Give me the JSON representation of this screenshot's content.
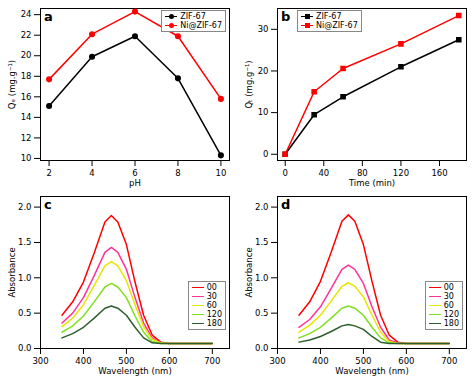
{
  "chart_data": [
    {
      "type": "line",
      "title": "a",
      "x_label": "pH",
      "y_label": "Qₑ (mg.g⁻¹)",
      "x": [
        2,
        4,
        6,
        8,
        10
      ],
      "series": [
        {
          "name": "ZIF-67",
          "color": "#000000",
          "values": [
            15.1,
            19.9,
            21.9,
            17.8,
            10.3
          ]
        },
        {
          "name": "Ni@ZIF-67",
          "color": "#ff0000",
          "values": [
            17.7,
            22.1,
            24.3,
            21.9,
            15.8
          ]
        }
      ],
      "xlim": [
        1.6,
        10.4
      ],
      "xticks": [
        2,
        4,
        6,
        8,
        10
      ],
      "ylim": [
        9.8,
        24.6
      ],
      "yticks": [
        10,
        12,
        14,
        16,
        18,
        20,
        22,
        24
      ],
      "marker": "circle",
      "grid": false,
      "legend": "upper right"
    },
    {
      "type": "line",
      "title": "b",
      "x_label": "Time (min)",
      "y_label": "Qₜ (mg.g⁻¹)",
      "x": [
        0,
        30,
        60,
        120,
        180
      ],
      "series": [
        {
          "name": "ZIF-67",
          "color": "#000000",
          "values": [
            0,
            9.5,
            13.8,
            21.0,
            27.5
          ]
        },
        {
          "name": "Ni@ZIF-67",
          "color": "#ff0000",
          "values": [
            0,
            15.0,
            20.6,
            26.5,
            33.3
          ]
        }
      ],
      "xlim": [
        -8,
        188
      ],
      "xticks": [
        0,
        40,
        80,
        120,
        160
      ],
      "ylim": [
        -1.5,
        35
      ],
      "yticks": [
        0,
        10,
        20,
        30
      ],
      "marker": "square",
      "grid": false,
      "legend": "upper left"
    },
    {
      "type": "line",
      "title": "c",
      "x_label": "Wavelength (nm)",
      "y_label": "Absorbance",
      "x": [
        350,
        375,
        400,
        425,
        450,
        465,
        480,
        500,
        520,
        540,
        560,
        580,
        600,
        650,
        700
      ],
      "series": [
        {
          "name": "00",
          "color": "#ff0000",
          "values": [
            0.47,
            0.66,
            0.94,
            1.35,
            1.79,
            1.88,
            1.79,
            1.47,
            0.94,
            0.47,
            0.19,
            0.09,
            0.07,
            0.07,
            0.07
          ]
        },
        {
          "name": "30",
          "color": "#ff3399",
          "values": [
            0.36,
            0.5,
            0.72,
            1.03,
            1.36,
            1.43,
            1.36,
            1.12,
            0.72,
            0.36,
            0.15,
            0.08,
            0.07,
            0.07,
            0.07
          ]
        },
        {
          "name": "60",
          "color": "#e6e600",
          "values": [
            0.31,
            0.43,
            0.62,
            0.89,
            1.17,
            1.23,
            1.17,
            0.96,
            0.62,
            0.31,
            0.13,
            0.08,
            0.07,
            0.07,
            0.07
          ]
        },
        {
          "name": "120",
          "color": "#80e020",
          "values": [
            0.23,
            0.32,
            0.46,
            0.66,
            0.87,
            0.92,
            0.87,
            0.72,
            0.46,
            0.23,
            0.1,
            0.07,
            0.07,
            0.07,
            0.07
          ]
        },
        {
          "name": "180",
          "color": "#2e5e2e",
          "values": [
            0.15,
            0.21,
            0.3,
            0.43,
            0.57,
            0.6,
            0.57,
            0.47,
            0.3,
            0.15,
            0.08,
            0.07,
            0.07,
            0.07,
            0.07
          ]
        }
      ],
      "xlim": [
        300,
        740
      ],
      "xticks": [
        300,
        400,
        500,
        600,
        700
      ],
      "ylim": [
        0,
        2.15
      ],
      "yticks": [
        {
          "value": 0,
          "label": "0.0"
        },
        {
          "value": 0.5,
          "label": "0.5"
        },
        {
          "value": 1,
          "label": "1.0"
        },
        {
          "value": 1.5,
          "label": "1.5"
        },
        {
          "value": 2,
          "label": "2.0"
        }
      ],
      "grid": false,
      "legend": "lower right"
    },
    {
      "type": "line",
      "title": "d",
      "x_label": "Wavelength (nm)",
      "y_label": "Absorbance",
      "x": [
        350,
        375,
        400,
        425,
        450,
        465,
        480,
        500,
        520,
        540,
        560,
        580,
        600,
        650,
        700
      ],
      "series": [
        {
          "name": "00",
          "color": "#ff0000",
          "values": [
            0.47,
            0.66,
            0.95,
            1.36,
            1.8,
            1.89,
            1.8,
            1.47,
            0.95,
            0.47,
            0.19,
            0.09,
            0.07,
            0.07,
            0.07
          ]
        },
        {
          "name": "30",
          "color": "#ff3399",
          "values": [
            0.3,
            0.41,
            0.59,
            0.85,
            1.12,
            1.18,
            1.12,
            0.92,
            0.59,
            0.3,
            0.12,
            0.08,
            0.07,
            0.07,
            0.07
          ]
        },
        {
          "name": "60",
          "color": "#e6e600",
          "values": [
            0.23,
            0.33,
            0.47,
            0.67,
            0.88,
            0.93,
            0.88,
            0.73,
            0.47,
            0.23,
            0.1,
            0.07,
            0.07,
            0.07,
            0.07
          ]
        },
        {
          "name": "120",
          "color": "#80e020",
          "values": [
            0.15,
            0.21,
            0.3,
            0.43,
            0.57,
            0.6,
            0.57,
            0.47,
            0.3,
            0.15,
            0.08,
            0.07,
            0.07,
            0.07,
            0.07
          ]
        },
        {
          "name": "180",
          "color": "#2e5e2e",
          "values": [
            0.09,
            0.12,
            0.17,
            0.24,
            0.32,
            0.34,
            0.32,
            0.27,
            0.17,
            0.09,
            0.07,
            0.07,
            0.07,
            0.07,
            0.07
          ]
        }
      ],
      "xlim": [
        300,
        740
      ],
      "xticks": [
        300,
        400,
        500,
        600,
        700
      ],
      "ylim": [
        0,
        2.15
      ],
      "yticks": [
        {
          "value": 0,
          "label": "0.0"
        },
        {
          "value": 0.5,
          "label": "0.5"
        },
        {
          "value": 1,
          "label": "1.0"
        },
        {
          "value": 1.5,
          "label": "1.5"
        },
        {
          "value": 2,
          "label": "2.0"
        }
      ],
      "grid": false,
      "legend": "lower right"
    }
  ]
}
